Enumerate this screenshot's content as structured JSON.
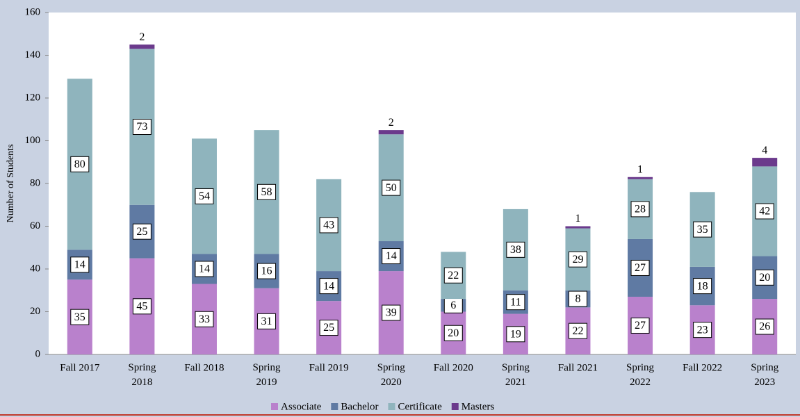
{
  "chart_data": {
    "type": "stacked_bar",
    "y_label": "Number of Students",
    "categories": [
      "Fall 2017",
      "Spring 2018",
      "Fall 2018",
      "Spring 2019",
      "Fall 2019",
      "Spring 2020",
      "Fall 2020",
      "Spring 2021",
      "Fall 2021",
      "Spring 2022",
      "Fall 2022",
      "Spring 2023"
    ],
    "series": [
      {
        "name": "Associate",
        "color": "#b981cc",
        "values": [
          35,
          45,
          33,
          31,
          25,
          39,
          20,
          19,
          22,
          27,
          23,
          26
        ]
      },
      {
        "name": "Bachelor",
        "color": "#5f7aa3",
        "values": [
          14,
          25,
          14,
          16,
          14,
          14,
          6,
          11,
          8,
          27,
          18,
          20
        ]
      },
      {
        "name": "Certificate",
        "color": "#8fb4bd",
        "values": [
          80,
          73,
          54,
          58,
          43,
          50,
          22,
          38,
          29,
          28,
          35,
          42
        ]
      },
      {
        "name": "Masters",
        "color": "#6b3a8c",
        "values": [
          null,
          2,
          null,
          null,
          null,
          2,
          null,
          null,
          1,
          1,
          null,
          4
        ]
      }
    ],
    "ylim": [
      0,
      160
    ],
    "yticks": [
      0,
      20,
      40,
      60,
      80,
      100,
      120,
      140,
      160
    ],
    "grid": false
  }
}
